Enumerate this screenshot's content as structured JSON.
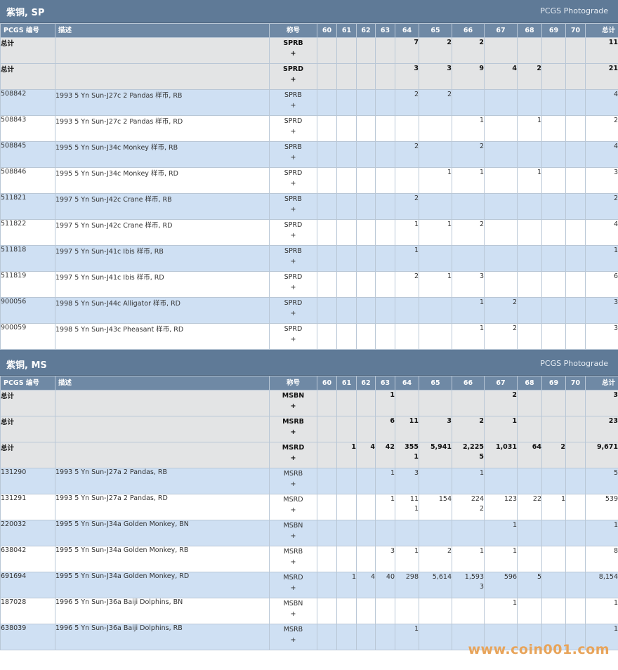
{
  "sp": {
    "title": "紫铜, SP",
    "photograde": "PCGS Photograde",
    "headers": {
      "code": "PCGS 编号",
      "desc": "描述",
      "designation": "称号",
      "grades": [
        "60",
        "61",
        "62",
        "63",
        "64",
        "65",
        "66",
        "67",
        "68",
        "69",
        "70"
      ],
      "total": "总计"
    },
    "rows": [
      {
        "type": "total",
        "code": "总计",
        "desc": "",
        "des": "SPRB",
        "plus": "+",
        "cells": [
          "",
          "",
          "",
          "",
          "7",
          "2",
          "2",
          "",
          "",
          "",
          ""
        ],
        "total": "11"
      },
      {
        "type": "total",
        "code": "总计",
        "desc": "",
        "des": "SPRD",
        "plus": "+",
        "cells": [
          "",
          "",
          "",
          "",
          "3",
          "3",
          "9",
          "4",
          "2",
          "",
          ""
        ],
        "total": "21"
      },
      {
        "type": "odd",
        "code": "508842",
        "desc": "1993 5 Yn Sun-J27c 2 Pandas 样币, RB",
        "des": "SPRB",
        "plus": "+",
        "cells": [
          "",
          "",
          "",
          "",
          "2",
          "2",
          "",
          "",
          "",
          "",
          ""
        ],
        "total": "4"
      },
      {
        "type": "even",
        "code": "508843",
        "desc": "1993 5 Yn Sun-J27c 2 Pandas 样币, RD",
        "des": "SPRD",
        "plus": "+",
        "cells": [
          "",
          "",
          "",
          "",
          "",
          "",
          "1",
          "",
          "1",
          "",
          ""
        ],
        "total": "2"
      },
      {
        "type": "odd",
        "code": "508845",
        "desc": "1995 5 Yn Sun-J34c Monkey 样币, RB",
        "des": "SPRB",
        "plus": "+",
        "cells": [
          "",
          "",
          "",
          "",
          "2",
          "",
          "2",
          "",
          "",
          "",
          ""
        ],
        "total": "4"
      },
      {
        "type": "even",
        "code": "508846",
        "desc": "1995 5 Yn Sun-J34c Monkey 样币, RD",
        "des": "SPRD",
        "plus": "+",
        "cells": [
          "",
          "",
          "",
          "",
          "",
          "1",
          "1",
          "",
          "1",
          "",
          ""
        ],
        "total": "3"
      },
      {
        "type": "odd",
        "code": "511821",
        "desc": "1997 5 Yn Sun-J42c Crane 样币, RB",
        "des": "SPRB",
        "plus": "+",
        "cells": [
          "",
          "",
          "",
          "",
          "2",
          "",
          "",
          "",
          "",
          "",
          ""
        ],
        "total": "2"
      },
      {
        "type": "even",
        "code": "511822",
        "desc": "1997 5 Yn Sun-J42c Crane 样币, RD",
        "des": "SPRD",
        "plus": "+",
        "cells": [
          "",
          "",
          "",
          "",
          "1",
          "1",
          "2",
          "",
          "",
          "",
          ""
        ],
        "total": "4"
      },
      {
        "type": "odd",
        "code": "511818",
        "desc": "1997 5 Yn Sun-J41c Ibis 样币, RB",
        "des": "SPRB",
        "plus": "+",
        "cells": [
          "",
          "",
          "",
          "",
          "1",
          "",
          "",
          "",
          "",
          "",
          ""
        ],
        "total": "1"
      },
      {
        "type": "even",
        "code": "511819",
        "desc": "1997 5 Yn Sun-J41c Ibis 样币, RD",
        "des": "SPRD",
        "plus": "+",
        "cells": [
          "",
          "",
          "",
          "",
          "2",
          "1",
          "3",
          "",
          "",
          "",
          ""
        ],
        "total": "6"
      },
      {
        "type": "odd",
        "code": "900056",
        "desc": "1998 5 Yn Sun-J44c Alligator 样币, RD",
        "des": "SPRD",
        "plus": "+",
        "cells": [
          "",
          "",
          "",
          "",
          "",
          "",
          "1",
          "2",
          "",
          "",
          ""
        ],
        "total": "3"
      },
      {
        "type": "even",
        "code": "900059",
        "desc": "1998 5 Yn Sun-J43c Pheasant 样币, RD",
        "des": "SPRD",
        "plus": "+",
        "cells": [
          "",
          "",
          "",
          "",
          "",
          "",
          "1",
          "2",
          "",
          "",
          ""
        ],
        "total": "3"
      }
    ]
  },
  "ms": {
    "title": "紫铜, MS",
    "photograde": "PCGS Photograde",
    "headers": {
      "code": "PCGS 编号",
      "desc": "描述",
      "designation": "称号",
      "grades": [
        "60",
        "61",
        "62",
        "63",
        "64",
        "65",
        "66",
        "67",
        "68",
        "69",
        "70"
      ],
      "total": "总计"
    },
    "rows": [
      {
        "type": "total",
        "code": "总计",
        "desc": "",
        "des": "MSBN",
        "plus": "+",
        "cells": [
          "",
          "",
          "",
          "1",
          "",
          "",
          "",
          "2",
          "",
          "",
          ""
        ],
        "total": "3"
      },
      {
        "type": "total",
        "code": "总计",
        "desc": "",
        "des": "MSRB",
        "plus": "+",
        "cells": [
          "",
          "",
          "",
          "6",
          "11",
          "3",
          "2",
          "1",
          "",
          "",
          ""
        ],
        "total": "23"
      },
      {
        "type": "total",
        "code": "总计",
        "desc": "",
        "des": "MSRD",
        "plus": "+",
        "cells": [
          "",
          "1",
          "4",
          "42",
          "355",
          "5,941",
          "2,225",
          "1,031",
          "64",
          "2",
          ""
        ],
        "sub": [
          "",
          "",
          "",
          "",
          "1",
          "",
          "5",
          "",
          "",
          "",
          ""
        ],
        "total": "9,671"
      },
      {
        "type": "odd",
        "code": "131290",
        "desc": "1993 5 Yn Sun-J27a 2 Pandas, RB",
        "des": "MSRB",
        "plus": "+",
        "cells": [
          "",
          "",
          "",
          "1",
          "3",
          "",
          "1",
          "",
          "",
          "",
          ""
        ],
        "total": "5"
      },
      {
        "type": "even",
        "code": "131291",
        "desc": "1993 5 Yn Sun-J27a 2 Pandas, RD",
        "des": "MSRD",
        "plus": "+",
        "cells": [
          "",
          "",
          "",
          "1",
          "11",
          "154",
          "224",
          "123",
          "22",
          "1",
          ""
        ],
        "sub": [
          "",
          "",
          "",
          "",
          "1",
          "",
          "2",
          "",
          "",
          "",
          ""
        ],
        "total": "539"
      },
      {
        "type": "odd",
        "code": "220032",
        "desc": "1995 5 Yn Sun-J34a Golden Monkey, BN",
        "des": "MSBN",
        "plus": "+",
        "cells": [
          "",
          "",
          "",
          "",
          "",
          "",
          "",
          "1",
          "",
          "",
          ""
        ],
        "total": "1"
      },
      {
        "type": "even",
        "code": "638042",
        "desc": "1995 5 Yn Sun-J34a Golden Monkey, RB",
        "des": "MSRB",
        "plus": "+",
        "cells": [
          "",
          "",
          "",
          "3",
          "1",
          "2",
          "1",
          "1",
          "",
          "",
          ""
        ],
        "total": "8"
      },
      {
        "type": "odd",
        "code": "691694",
        "desc": "1995 5 Yn Sun-J34a Golden Monkey, RD",
        "des": "MSRD",
        "plus": "+",
        "cells": [
          "",
          "1",
          "4",
          "40",
          "298",
          "5,614",
          "1,593",
          "596",
          "5",
          "",
          ""
        ],
        "sub": [
          "",
          "",
          "",
          "",
          "",
          "",
          "3",
          "",
          "",
          "",
          ""
        ],
        "total": "8,154"
      },
      {
        "type": "even",
        "code": "187028",
        "desc": "1996 5 Yn Sun-J36a Baiji Dolphins, BN",
        "des": "MSBN",
        "plus": "+",
        "cells": [
          "",
          "",
          "",
          "",
          "",
          "",
          "",
          "1",
          "",
          "",
          ""
        ],
        "total": "1"
      },
      {
        "type": "odd",
        "code": "638039",
        "desc": "1996 5 Yn Sun-J36a Baiji Dolphins, RB",
        "des": "MSRB",
        "plus": "+",
        "cells": [
          "",
          "",
          "",
          "",
          "1",
          "",
          "",
          "",
          "",
          "",
          ""
        ],
        "total": "1"
      }
    ]
  },
  "watermark": "www.coin001.com"
}
